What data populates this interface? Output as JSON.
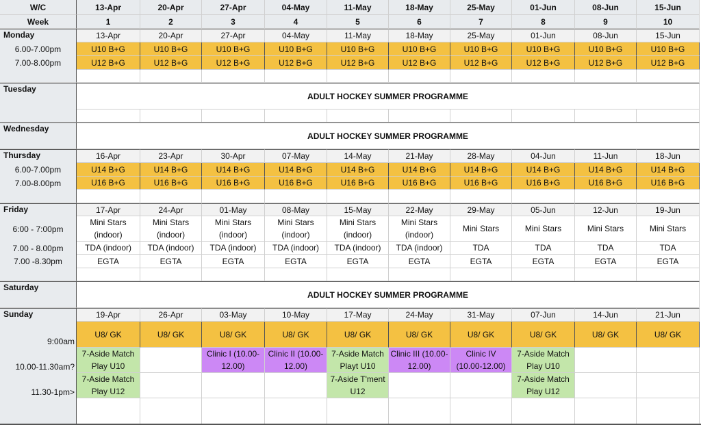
{
  "palette": {
    "orange": "#F4C142",
    "green": "#C3E6AA",
    "purple": "#CC88F5",
    "header": "#E8EBEE",
    "date_row": "#F2F2F2"
  },
  "header": {
    "wc_label": "W/C",
    "week_label": "Week",
    "wc": [
      "13-Apr",
      "20-Apr",
      "27-Apr",
      "04-May",
      "11-May",
      "18-May",
      "25-May",
      "01-Jun",
      "08-Jun",
      "15-Jun"
    ],
    "weeks": [
      "1",
      "2",
      "3",
      "4",
      "5",
      "6",
      "7",
      "8",
      "9",
      "10"
    ]
  },
  "days": {
    "monday": {
      "label": "Monday",
      "dates": [
        "13-Apr",
        "20-Apr",
        "27-Apr",
        "04-May",
        "11-May",
        "18-May",
        "25-May",
        "01-Jun",
        "08-Jun",
        "15-Jun"
      ],
      "rows": [
        {
          "time": "6.00-7.00pm",
          "cells": [
            "U10 B+G",
            "U10 B+G",
            "U10 B+G",
            "U10 B+G",
            "U10 B+G",
            "U10 B+G",
            "U10 B+G",
            "U10 B+G",
            "U10 B+G",
            "U10 B+G"
          ],
          "fill": [
            "orange",
            "orange",
            "orange",
            "orange",
            "orange",
            "orange",
            "orange",
            "orange",
            "orange",
            "orange"
          ]
        },
        {
          "time": "7.00-8.00pm",
          "cells": [
            "U12 B+G",
            "U12 B+G",
            "U12 B+G",
            "U12 B+G",
            "U12 B+G",
            "U12 B+G",
            "U12 B+G",
            "U12 B+G",
            "U12 B+G",
            "U12 B+G"
          ],
          "fill": [
            "orange",
            "orange",
            "orange",
            "orange",
            "orange",
            "orange",
            "orange",
            "orange",
            "orange",
            "orange"
          ]
        }
      ]
    },
    "tuesday": {
      "label": "Tuesday",
      "banner": "ADULT HOCKEY SUMMER PROGRAMME"
    },
    "wednesday": {
      "label": "Wednesday",
      "banner": "ADULT HOCKEY SUMMER PROGRAMME"
    },
    "thursday": {
      "label": "Thursday",
      "dates": [
        "16-Apr",
        "23-Apr",
        "30-Apr",
        "07-May",
        "14-May",
        "21-May",
        "28-May",
        "04-Jun",
        "11-Jun",
        "18-Jun"
      ],
      "rows": [
        {
          "time": "6.00-7.00pm",
          "cells": [
            "U14 B+G",
            "U14 B+G",
            "U14 B+G",
            "U14 B+G",
            "U14 B+G",
            "U14 B+G",
            "U14 B+G",
            "U14 B+G",
            "U14 B+G",
            "U14 B+G"
          ],
          "fill": [
            "orange",
            "orange",
            "orange",
            "orange",
            "orange",
            "orange",
            "orange",
            "orange",
            "orange",
            "orange"
          ]
        },
        {
          "time": "7.00-8.00pm",
          "cells": [
            "U16 B+G",
            "U16 B+G",
            "U16 B+G",
            "U16 B+G",
            "U16 B+G",
            "U16 B+G",
            "U16 B+G",
            "U16 B+G",
            "U16 B+G",
            "U16 B+G"
          ],
          "fill": [
            "orange",
            "orange",
            "orange",
            "orange",
            "orange",
            "orange",
            "orange",
            "orange",
            "orange",
            "orange"
          ]
        }
      ]
    },
    "friday": {
      "label": "Friday",
      "dates": [
        "17-Apr",
        "24-Apr",
        "01-May",
        "08-May",
        "15-May",
        "22-May",
        "29-May",
        "05-Jun",
        "12-Jun",
        "19-Jun"
      ],
      "rows": [
        {
          "time": "6:00 - 7:00pm",
          "cells": [
            "Mini Stars (indoor)",
            "Mini Stars (indoor)",
            "Mini Stars (indoor)",
            "Mini Stars (indoor)",
            "Mini Stars (indoor)",
            "Mini Stars (indoor)",
            "Mini Stars",
            "Mini Stars",
            "Mini Stars",
            "Mini Stars"
          ],
          "fill": [
            "",
            "",
            "",
            "",
            "",
            "",
            "",
            "",
            "",
            ""
          ]
        },
        {
          "time": "7.00 - 8.00pm",
          "cells": [
            "TDA (indoor)",
            "TDA (indoor)",
            "TDA (indoor)",
            "TDA (indoor)",
            "TDA (indoor)",
            "TDA (indoor)",
            "TDA",
            "TDA",
            "TDA",
            "TDA"
          ],
          "fill": [
            "",
            "",
            "",
            "",
            "",
            "",
            "",
            "",
            "",
            ""
          ]
        },
        {
          "time": "7.00 -8.30pm",
          "cells": [
            "EGTA",
            "EGTA",
            "EGTA",
            "EGTA",
            "EGTA",
            "EGTA",
            "EGTA",
            "EGTA",
            "EGTA",
            "EGTA"
          ],
          "fill": [
            "",
            "",
            "",
            "",
            "",
            "",
            "",
            "",
            "",
            ""
          ]
        }
      ]
    },
    "saturday": {
      "label": "Saturday",
      "banner": "ADULT HOCKEY SUMMER PROGRAMME"
    },
    "sunday": {
      "label": "Sunday",
      "dates": [
        "19-Apr",
        "26-Apr",
        "03-May",
        "10-May",
        "17-May",
        "24-May",
        "31-May",
        "07-Jun",
        "14-Jun",
        "21-Jun"
      ],
      "rows": [
        {
          "time": "9:00am",
          "cells": [
            "U8/ GK",
            "U8/ GK",
            "U8/ GK",
            "U8/ GK",
            "U8/ GK",
            "U8/ GK",
            "U8/ GK",
            "U8/ GK",
            "U8/ GK",
            "U8/ GK"
          ],
          "fill": [
            "orange",
            "orange",
            "orange",
            "orange",
            "orange",
            "orange",
            "orange",
            "orange",
            "orange",
            "orange"
          ]
        },
        {
          "time": "10.00-11.30am?",
          "cells": [
            "7-Aside Match Play U10",
            "",
            "Clinic I (10.00-12.00)",
            "Clinic II (10.00-12.00)",
            "7-Aside Match Playt U10",
            "Clinic III (10.00-12.00)",
            "Clinic IV (10.00-12.00)",
            "7-Aside Match Play U10",
            "",
            ""
          ],
          "fill": [
            "green",
            "",
            "purple",
            "purple",
            "green",
            "purple",
            "purple",
            "green",
            "",
            ""
          ]
        },
        {
          "time": "11.30-1pm>",
          "cells": [
            "7-Aside Match Play U12",
            "",
            "",
            "",
            "7-Aside T'ment U12",
            "",
            "",
            "7-Aside Match Play U12",
            "",
            ""
          ],
          "fill": [
            "green",
            "",
            "",
            "",
            "green",
            "",
            "",
            "green",
            "",
            ""
          ]
        }
      ]
    }
  }
}
